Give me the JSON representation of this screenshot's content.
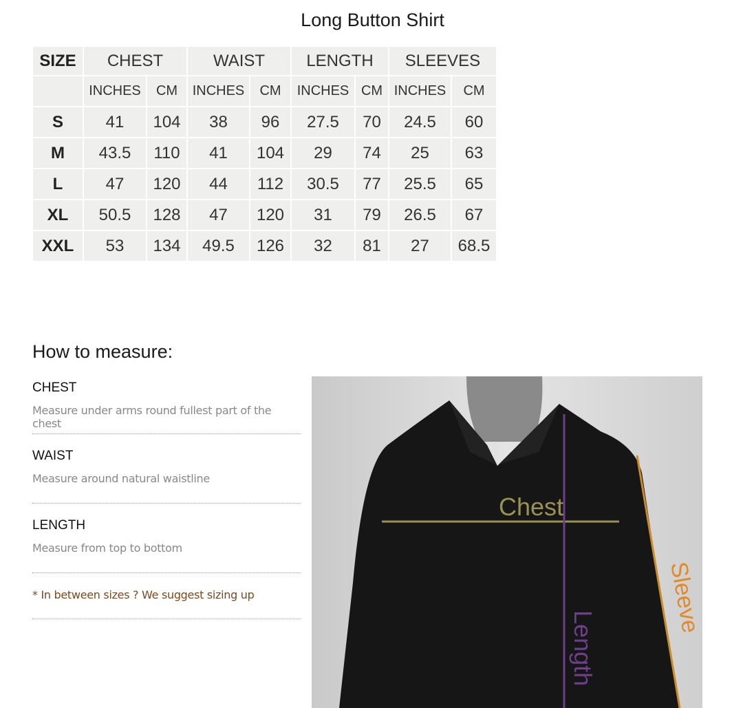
{
  "title": "Long Button Shirt",
  "table": {
    "headers": [
      "SIZE",
      "CHEST",
      "WAIST",
      "LENGTH",
      "SLEEVES"
    ],
    "subheaders": [
      "INCHES",
      "CM",
      "INCHES",
      "CM",
      "INCHES",
      "CM",
      "INCHES",
      "CM"
    ],
    "rows": [
      [
        "S",
        "41",
        "104",
        "38",
        "96",
        "27.5",
        "70",
        "24.5",
        "60"
      ],
      [
        "M",
        "43.5",
        "110",
        "41",
        "104",
        "29",
        "74",
        "25",
        "63"
      ],
      [
        "L",
        "47",
        "120",
        "44",
        "112",
        "30.5",
        "77",
        "25.5",
        "65"
      ],
      [
        "XL",
        "50.5",
        "128",
        "47",
        "120",
        "31",
        "79",
        "26.5",
        "67"
      ],
      [
        "XXL",
        "53",
        "134",
        "49.5",
        "126",
        "32",
        "81",
        "27",
        "68.5"
      ]
    ]
  },
  "how_to": {
    "title": "How to measure:",
    "items": [
      {
        "title": "CHEST",
        "desc": "Measure under arms round fullest part of the chest"
      },
      {
        "title": "WAIST",
        "desc": "Measure around natural waistline"
      },
      {
        "title": "LENGTH",
        "desc": "Measure from top to bottom"
      }
    ],
    "note": "* In between sizes ? We suggest sizing up"
  },
  "image": {
    "labels": {
      "chest": "Chest",
      "length": "Length",
      "sleeve": "Sleeve"
    },
    "colors": {
      "chest": "#9a9250",
      "length": "#6b3f8a",
      "sleeve": "#c98a2a"
    }
  }
}
